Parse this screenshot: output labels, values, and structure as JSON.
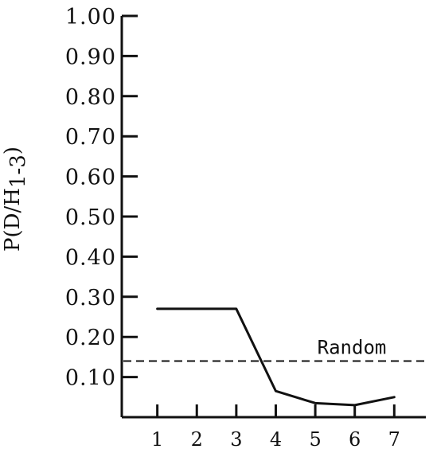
{
  "chart_data": {
    "type": "line",
    "title": "",
    "xlabel": "",
    "ylabel": "P(D/H",
    "ylabel_subscript": "1-3",
    "ylabel_close": ")",
    "x": [
      1,
      2,
      3,
      4,
      5,
      6,
      7
    ],
    "x_tick_labels": [
      "1",
      "2",
      "3",
      "4",
      "5",
      "6",
      "7"
    ],
    "y_tick_labels": [
      "1.00",
      "0.90",
      "0.80",
      "0.70",
      "0.60",
      "0.50",
      "0.40",
      "0.30",
      "0.20",
      "0.10"
    ],
    "y_ticks": [
      1.0,
      0.9,
      0.8,
      0.7,
      0.6,
      0.5,
      0.4,
      0.3,
      0.2,
      0.1
    ],
    "xlim": [
      0.1,
      7.8
    ],
    "ylim": [
      0,
      1.0
    ],
    "series": [
      {
        "values": [
          0.27,
          0.27,
          0.27,
          0.065,
          0.035,
          0.03,
          0.05
        ],
        "style": "solid"
      }
    ],
    "reference_lines": [
      {
        "label": "Random",
        "y": 0.14,
        "style": "dashed"
      }
    ],
    "grid": false,
    "colors": {
      "line": "#111111",
      "background": "#ffffff"
    }
  }
}
